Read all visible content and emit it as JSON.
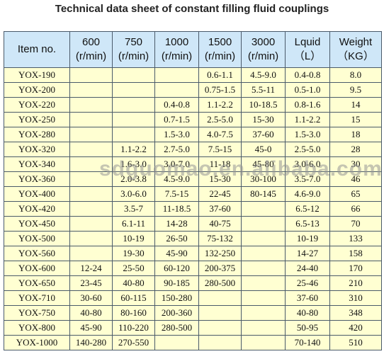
{
  "title": "Technical data sheet of constant filling fluid couplings",
  "watermark": "sdguomao.en.alibaba.com",
  "table": {
    "header": [
      [
        "Item no."
      ],
      [
        "600",
        "(r/min)"
      ],
      [
        "750",
        "(r/min)"
      ],
      [
        "1000",
        "(r/min)"
      ],
      [
        "1500",
        "(r/min)"
      ],
      [
        "3000",
        "(r/min)"
      ],
      [
        "Lquid",
        "（L）"
      ],
      [
        "Weight",
        "（KG）"
      ]
    ],
    "rows": [
      [
        "YOX-190",
        null,
        null,
        null,
        "0.6-1.1",
        "4.5-9.0",
        "0.4-0.8",
        "8.0"
      ],
      [
        "YOX-200",
        null,
        null,
        null,
        "0.75-1.5",
        "5.5-11",
        "0.5-1.0",
        "9.5"
      ],
      [
        "YOX-220",
        null,
        null,
        "0.4-0.8",
        "1.1-2.2",
        "10-18.5",
        "0.8-1.6",
        "14"
      ],
      [
        "YOX-250",
        null,
        null,
        "0.7-1.5",
        "2.5-5.0",
        "15-30",
        "1.1-2.2",
        "15"
      ],
      [
        "YOX-280",
        null,
        null,
        "1.5-3.0",
        "4.0-7.5",
        "37-60",
        "1.5-3.0",
        "18"
      ],
      [
        "YOX-320",
        null,
        "1.1-2.2",
        "2.7-5.0",
        "7.5-15",
        "45-0",
        "2.5-5.0",
        "28"
      ],
      [
        "YOX-340",
        null,
        "1.6-3.0",
        "3.0-7.0",
        "11-18",
        "45-80",
        "3.0-6.0",
        "30"
      ],
      [
        "YOX-360",
        null,
        "2.0-3.8",
        "4.5-9.0",
        "15-30",
        "30-100",
        "3.5-7.0",
        "46"
      ],
      [
        "YOX-400",
        null,
        "3.0-6.0",
        "7.5-15",
        "22-45",
        "80-145",
        "4.6-9.0",
        "65"
      ],
      [
        "YOX-420",
        null,
        "3.5-7",
        "11-18.5",
        "37-60",
        null,
        "6.5-12",
        "66"
      ],
      [
        "YOX-450",
        null,
        "6.1-11",
        "14-28",
        "40-75",
        null,
        "6.5-13",
        "70"
      ],
      [
        "YOX-500",
        null,
        "10-19",
        "26-50",
        "75-132",
        null,
        "10-19",
        "133"
      ],
      [
        "YOX-560",
        null,
        "19-30",
        "45-90",
        "132-250",
        null,
        "14-27",
        "158"
      ],
      [
        "YOX-600",
        "12-24",
        "25-50",
        "60-120",
        "200-375",
        null,
        "24-40",
        "170"
      ],
      [
        "YOX-650",
        "23-45",
        "40-80",
        "90-185",
        "280-500",
        null,
        "25-46",
        "210"
      ],
      [
        "YOX-710",
        "30-60",
        "60-115",
        "150-280",
        null,
        null,
        "37-60",
        "310"
      ],
      [
        "YOX-750",
        "40-80",
        "80-160",
        "200-360",
        null,
        null,
        "40-80",
        "348"
      ],
      [
        "YOX-800",
        "45-90",
        "110-220",
        "280-500",
        null,
        null,
        "50-95",
        "420"
      ],
      [
        "YOX-1000",
        "140-280",
        "270-550",
        null,
        null,
        null,
        "70-140",
        "510"
      ]
    ]
  }
}
